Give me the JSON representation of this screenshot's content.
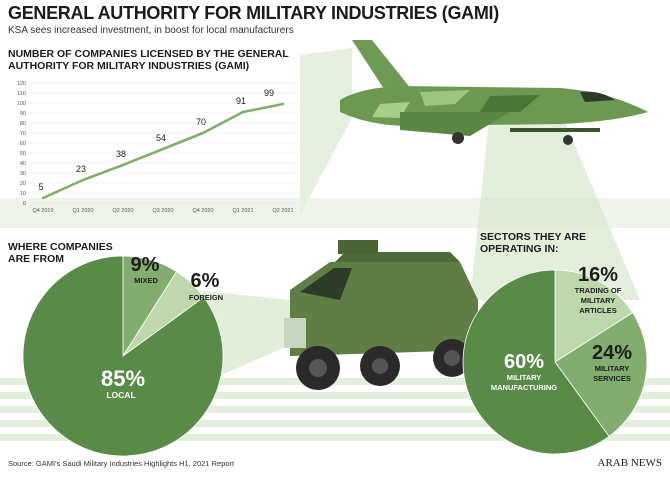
{
  "header": {
    "title": "GENERAL AUTHORITY FOR MILITARY INDUSTRIES (GAMI)",
    "subtitle": "KSA sees increased investment, in boost for local manufacturers"
  },
  "colors": {
    "dark_green": "#5a8a47",
    "mid_green": "#83ad6e",
    "light_green": "#bfd7ad",
    "band": "#dde9d3"
  },
  "chart_data": [
    {
      "type": "line",
      "title": "NUMBER OF COMPANIES LICENSED BY THE GENERAL AUTHORITY FOR MILITARY INDUSTRIES (GAMI)",
      "categories": [
        "Q4 2019",
        "Q1 2020",
        "Q2 2020",
        "Q3 2020",
        "Q4 2020",
        "Q1 2021",
        "Q2 2021"
      ],
      "values": [
        5,
        23,
        38,
        54,
        70,
        91,
        99
      ],
      "ylim": [
        0,
        120
      ],
      "yticks": [
        0,
        10,
        20,
        30,
        40,
        50,
        60,
        70,
        80,
        90,
        100,
        110,
        120
      ],
      "grid": true
    },
    {
      "type": "pie",
      "title": "WHERE COMPANIES ARE FROM",
      "slices": [
        {
          "label": "LOCAL",
          "value": 85,
          "pct": "85%",
          "color": "#5a8a47"
        },
        {
          "label": "MIXED",
          "value": 9,
          "pct": "9%",
          "color": "#83ad6e"
        },
        {
          "label": "FOREIGN",
          "value": 6,
          "pct": "6%",
          "color": "#bfd7ad"
        }
      ]
    },
    {
      "type": "pie",
      "title": "SECTORS THEY ARE OPERATING IN:",
      "slices": [
        {
          "label": "MILITARY MANUFACTURING",
          "value": 60,
          "pct": "60%",
          "color": "#5a8a47"
        },
        {
          "label": "TRADING OF MILITARY ARTICLES",
          "value": 16,
          "pct": "16%",
          "color": "#bfd7ad"
        },
        {
          "label": "MILITARY SERVICES",
          "value": 24,
          "pct": "24%",
          "color": "#83ad6e"
        }
      ]
    }
  ],
  "footer": {
    "source": "Source: GAMI's Saudi Military Industries Highlights H1, 2021 Report",
    "brand": "ARAB NEWS"
  }
}
